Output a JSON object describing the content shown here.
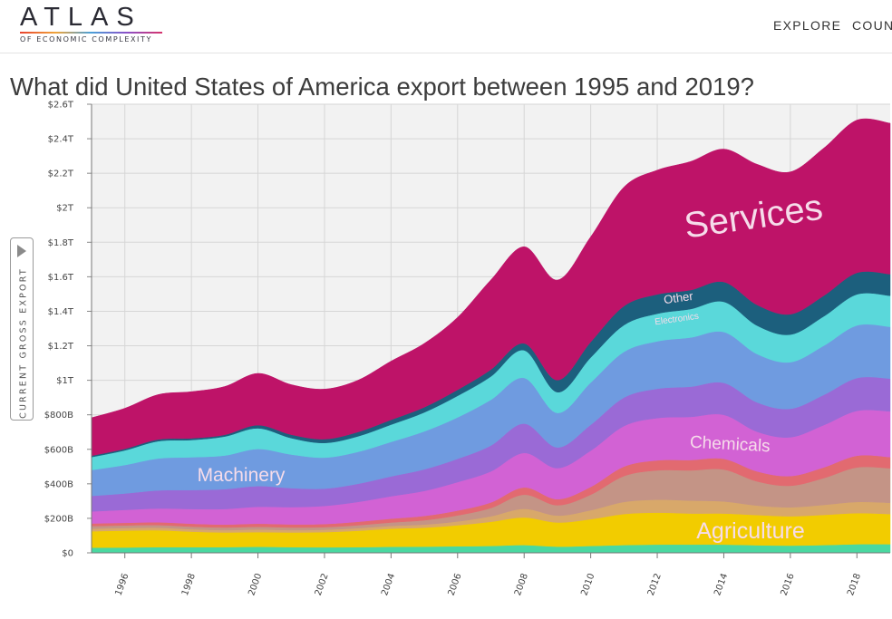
{
  "header": {
    "logo": {
      "title": "ATLAS",
      "subtitle": "OF ECONOMIC COMPLEXITY"
    },
    "nav": [
      {
        "label": "EXPLORE"
      },
      {
        "label": "COUNT"
      }
    ]
  },
  "page": {
    "title": "What did United States of America export between 1995 and 2019?",
    "measure_toggle": {
      "label": "CURRENT GROSS EXPORT"
    }
  },
  "chart_data": {
    "type": "area",
    "stacked": true,
    "x": [
      1995,
      1996,
      1997,
      1998,
      1999,
      2000,
      2001,
      2002,
      2003,
      2004,
      2005,
      2006,
      2007,
      2008,
      2009,
      2010,
      2011,
      2012,
      2013,
      2014,
      2015,
      2016,
      2017,
      2018,
      2019
    ],
    "xlim": [
      1995,
      2019
    ],
    "x_tick_labels": [
      "1996",
      "1998",
      "2000",
      "2002",
      "2004",
      "2006",
      "2008",
      "2010",
      "2012",
      "2014",
      "2016",
      "2018"
    ],
    "ylim": [
      0,
      2600
    ],
    "y_unit": "billion USD",
    "y_tick_labels": [
      "$0",
      "$200B",
      "$400B",
      "$600B",
      "$800B",
      "$1T",
      "$1.2T",
      "$1.4T",
      "$1.6T",
      "$1.8T",
      "$2T",
      "$2.2T",
      "$2.4T",
      "$2.6T"
    ],
    "grid": true,
    "series": [
      {
        "name": "",
        "color": "#4ad8a0",
        "values": [
          30,
          31,
          33,
          33,
          33,
          35,
          33,
          32,
          33,
          35,
          36,
          38,
          40,
          45,
          36,
          40,
          45,
          48,
          48,
          48,
          44,
          42,
          45,
          50,
          50
        ]
      },
      {
        "name": "Agriculture",
        "color": "#f2cc00",
        "values": [
          95,
          98,
          98,
          90,
          85,
          85,
          85,
          88,
          95,
          105,
          110,
          122,
          140,
          160,
          140,
          155,
          180,
          185,
          180,
          180,
          175,
          170,
          175,
          180,
          175
        ]
      },
      {
        "name": "",
        "color": "#d8a86a",
        "values": [
          15,
          15,
          15,
          14,
          14,
          15,
          14,
          14,
          15,
          16,
          18,
          22,
          32,
          50,
          40,
          52,
          70,
          75,
          75,
          70,
          55,
          52,
          58,
          65,
          65
        ]
      },
      {
        "name": "",
        "color": "#c49486",
        "values": [
          15,
          15,
          15,
          15,
          15,
          16,
          15,
          15,
          17,
          20,
          25,
          35,
          48,
          82,
          60,
          90,
          150,
          170,
          175,
          185,
          140,
          125,
          155,
          200,
          200
        ]
      },
      {
        "name": "",
        "color": "#e26a70",
        "values": [
          15,
          15,
          16,
          17,
          17,
          18,
          18,
          18,
          20,
          22,
          25,
          28,
          32,
          42,
          35,
          45,
          55,
          58,
          60,
          62,
          58,
          56,
          62,
          68,
          65
        ]
      },
      {
        "name": "Chemicals",
        "color": "#d262d4",
        "values": [
          70,
          75,
          80,
          85,
          90,
          98,
          100,
          105,
          115,
          130,
          145,
          165,
          180,
          200,
          180,
          210,
          235,
          245,
          250,
          255,
          230,
          225,
          245,
          260,
          265
        ]
      },
      {
        "name": "",
        "color": "#9a6ad6",
        "values": [
          90,
          95,
          105,
          110,
          115,
          120,
          110,
          100,
          105,
          115,
          125,
          135,
          150,
          170,
          120,
          150,
          165,
          170,
          175,
          185,
          170,
          165,
          175,
          190,
          190
        ]
      },
      {
        "name": "Machinery",
        "color": "#6f9be0",
        "values": [
          150,
          165,
          185,
          190,
          195,
          215,
          195,
          180,
          185,
          200,
          220,
          240,
          265,
          265,
          200,
          245,
          265,
          275,
          285,
          295,
          280,
          270,
          285,
          305,
          300
        ]
      },
      {
        "name": "Electronics",
        "color": "#5ad8da",
        "values": [
          75,
          85,
          100,
          100,
          110,
          120,
          95,
          85,
          90,
          100,
          110,
          125,
          135,
          160,
          120,
          145,
          155,
          160,
          165,
          175,
          165,
          160,
          170,
          180,
          180
        ]
      },
      {
        "name": "Other",
        "color": "#1c5f7d",
        "values": [
          8,
          9,
          10,
          10,
          10,
          18,
          20,
          22,
          25,
          28,
          30,
          35,
          40,
          40,
          70,
          90,
          110,
          112,
          110,
          115,
          120,
          118,
          120,
          125,
          125
        ]
      },
      {
        "name": "Services",
        "color": "#be1368",
        "values": [
          220,
          235,
          260,
          270,
          280,
          300,
          290,
          290,
          300,
          340,
          370,
          420,
          520,
          560,
          580,
          610,
          690,
          720,
          745,
          770,
          815,
          825,
          855,
          885,
          875
        ]
      }
    ],
    "area_labels": [
      "Services",
      "Other",
      "Electronics",
      "Machinery",
      "Chemicals",
      "Agriculture"
    ]
  }
}
